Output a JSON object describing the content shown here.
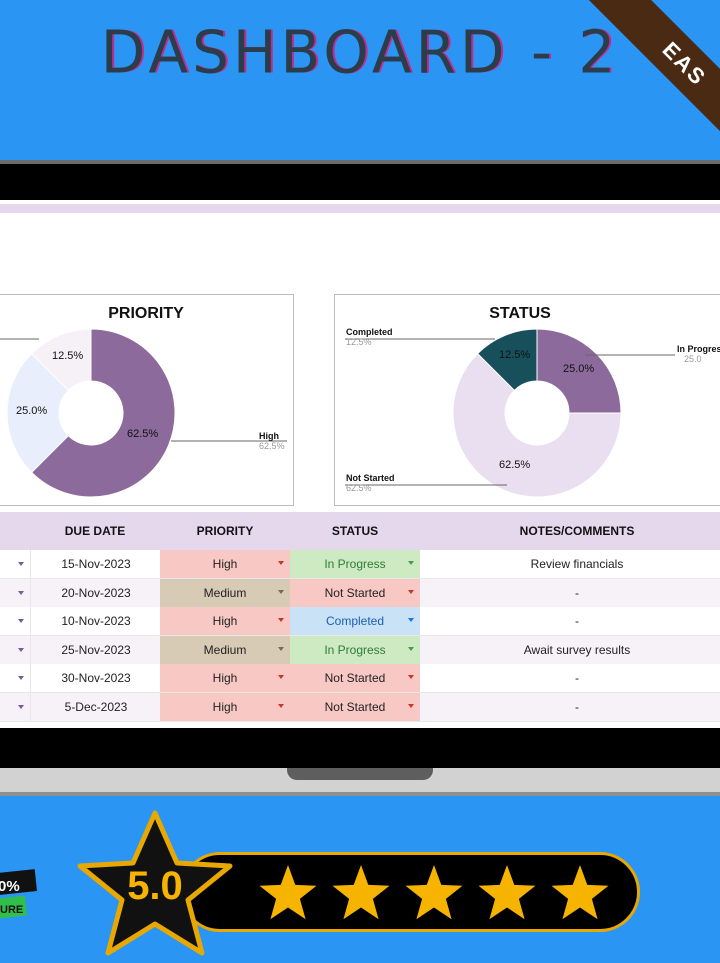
{
  "header": {
    "title": "DASHBOARD - 2",
    "ribbon": "EAS"
  },
  "priority_chart": {
    "title": "PRIORITY",
    "slices": [
      {
        "label": "High",
        "percent": 62.5,
        "color": "#8c6a9b"
      },
      {
        "label": "",
        "percent": 25.0,
        "color": "#e8eefb"
      },
      {
        "label": "",
        "percent": 12.5,
        "color": "#f6f1f7"
      }
    ],
    "labels": {
      "a": "12.5%",
      "b": "25.0%",
      "c": "62.5%"
    },
    "callout_high": {
      "name": "High",
      "pct": "62.5%"
    }
  },
  "status_chart": {
    "title": "STATUS",
    "slices": [
      {
        "label": "In Progress",
        "percent": 25.0,
        "color": "#8c6a9b"
      },
      {
        "label": "Not Started",
        "percent": 62.5,
        "color": "#e9dff0"
      },
      {
        "label": "Completed",
        "percent": 12.5,
        "color": "#17505a"
      }
    ],
    "labels": {
      "a": "12.5%",
      "b": "25.0%",
      "c": "62.5%"
    },
    "callouts": {
      "completed": {
        "name": "Completed",
        "pct": "12.5%"
      },
      "in_progress": {
        "name": "In Progres",
        "pct": "25.0"
      },
      "not_started": {
        "name": "Not Started",
        "pct": "62.5%"
      }
    }
  },
  "table": {
    "headers": {
      "due": "DUE DATE",
      "priority": "PRIORITY",
      "status": "STATUS",
      "notes": "NOTES/COMMENTS"
    },
    "rows": [
      {
        "due": "15-Nov-2023",
        "priority": "High",
        "status": "In Progress",
        "notes": "Review financials"
      },
      {
        "due": "20-Nov-2023",
        "priority": "Medium",
        "status": "Not Started",
        "notes": "-"
      },
      {
        "due": "10-Nov-2023",
        "priority": "High",
        "status": "Completed",
        "notes": "-"
      },
      {
        "due": "25-Nov-2023",
        "priority": "Medium",
        "status": "In Progress",
        "notes": "Await survey results"
      },
      {
        "due": "30-Nov-2023",
        "priority": "High",
        "status": "Not Started",
        "notes": "-"
      },
      {
        "due": "5-Dec-2023",
        "priority": "High",
        "status": "Not Started",
        "notes": "-"
      }
    ]
  },
  "colors": {
    "priority_high": "#f8c9c4",
    "priority_medium": "#d8cbb5",
    "status_in_progress": "#cdeac3",
    "status_not_started": "#f8c9c4",
    "status_completed": "#c9e2f6",
    "in_progress_text": "#2e7d32",
    "completed_text": "#1a5fb4"
  },
  "rating": {
    "score": "5.0",
    "stars": 5
  },
  "badge": {
    "top": "0%",
    "bottom": "URE"
  }
}
